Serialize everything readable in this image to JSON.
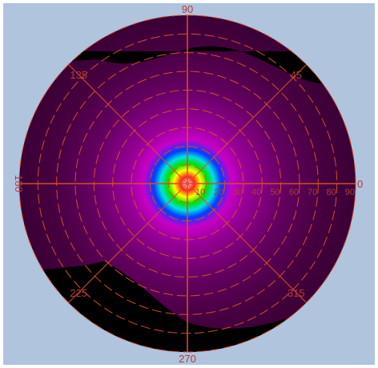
{
  "chart_data": {
    "type": "heatmap",
    "projection": "polar",
    "angle_ticks": [
      "0",
      "45",
      "90",
      "135",
      "180",
      "225",
      "270",
      "315"
    ],
    "angle_values": [
      0,
      45,
      90,
      135,
      180,
      225,
      270,
      315
    ],
    "radial_ticks": [
      "10",
      "20",
      "30",
      "40",
      "50",
      "60",
      "70",
      "80",
      "90"
    ],
    "radial_values": [
      10,
      20,
      30,
      40,
      50,
      60,
      70,
      80,
      90
    ],
    "rlim": [
      0,
      90
    ],
    "grid": true,
    "colormap": [
      {
        "t": 0.0,
        "color": "#ffffff"
      },
      {
        "t": 0.04,
        "color": "#ff2020"
      },
      {
        "t": 0.08,
        "color": "#ffff00"
      },
      {
        "t": 0.12,
        "color": "#00e000"
      },
      {
        "t": 0.16,
        "color": "#00e0e0"
      },
      {
        "t": 0.2,
        "color": "#0040ff"
      },
      {
        "t": 0.26,
        "color": "#c800c8"
      },
      {
        "t": 0.36,
        "color": "#960096"
      },
      {
        "t": 0.58,
        "color": "#62005f"
      },
      {
        "t": 0.8,
        "color": "#470040"
      },
      {
        "t": 1.0,
        "color": "#3a0035"
      }
    ],
    "colors": {
      "background": "#b0c4de",
      "grid": "#d64b2a",
      "labels": "#b03a3a",
      "no_data": "#000000"
    }
  }
}
